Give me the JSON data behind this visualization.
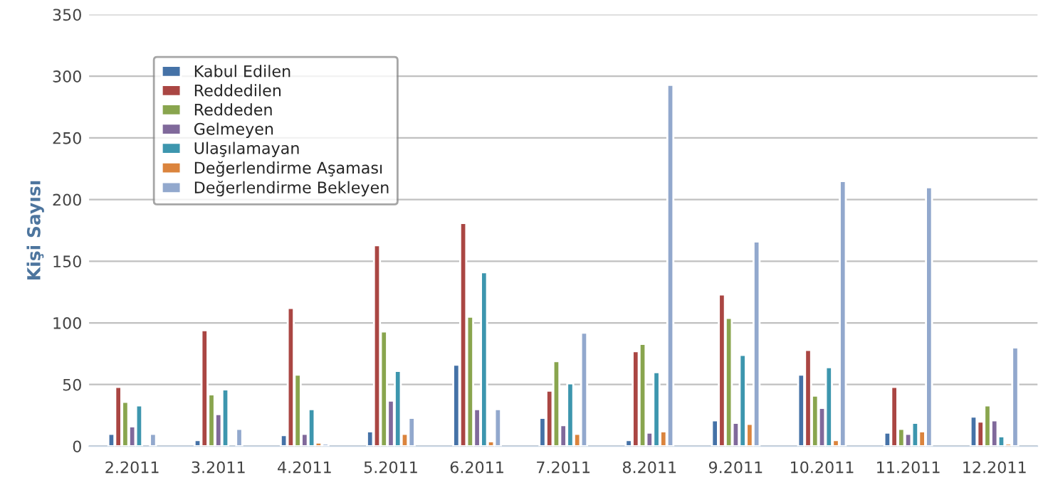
{
  "chart_data": {
    "type": "bar",
    "ylabel": "Kişi Sayısı",
    "categories": [
      "2.2011",
      "3.2011",
      "4.2011",
      "5.2011",
      "6.2011",
      "7.2011",
      "8.2011",
      "9.2011",
      "10.2011",
      "11.2011",
      "12.2011"
    ],
    "series": [
      {
        "name": "Kabul Edilen",
        "color": "#4572a7",
        "values": [
          10,
          5,
          9,
          12,
          66,
          23,
          5,
          21,
          58,
          11,
          24
        ]
      },
      {
        "name": "Reddedilen",
        "color": "#aa4643",
        "values": [
          48,
          94,
          112,
          163,
          181,
          45,
          77,
          123,
          78,
          48,
          20
        ]
      },
      {
        "name": "Reddeden",
        "color": "#89a54e",
        "values": [
          36,
          42,
          58,
          93,
          105,
          69,
          83,
          104,
          41,
          14,
          33
        ]
      },
      {
        "name": "Gelmeyen",
        "color": "#80699b",
        "values": [
          16,
          26,
          10,
          37,
          30,
          17,
          11,
          19,
          31,
          10,
          21
        ]
      },
      {
        "name": "Ulaşılamayan",
        "color": "#3d96ae",
        "values": [
          33,
          46,
          30,
          61,
          141,
          51,
          60,
          74,
          64,
          19,
          8
        ]
      },
      {
        "name": "Değerlendirme Aşaması",
        "color": "#db843d",
        "values": [
          null,
          null,
          3,
          10,
          4,
          10,
          12,
          18,
          5,
          12,
          2
        ]
      },
      {
        "name": "Değerlendirme Bekleyen",
        "color": "#92a8cd",
        "values": [
          10,
          14,
          2,
          23,
          30,
          92,
          293,
          166,
          215,
          210,
          80
        ]
      }
    ],
    "ylim": [
      0,
      350
    ],
    "yticks": [
      0,
      50,
      100,
      150,
      200,
      250,
      300,
      350
    ],
    "grid": "y",
    "legend": "top left"
  }
}
